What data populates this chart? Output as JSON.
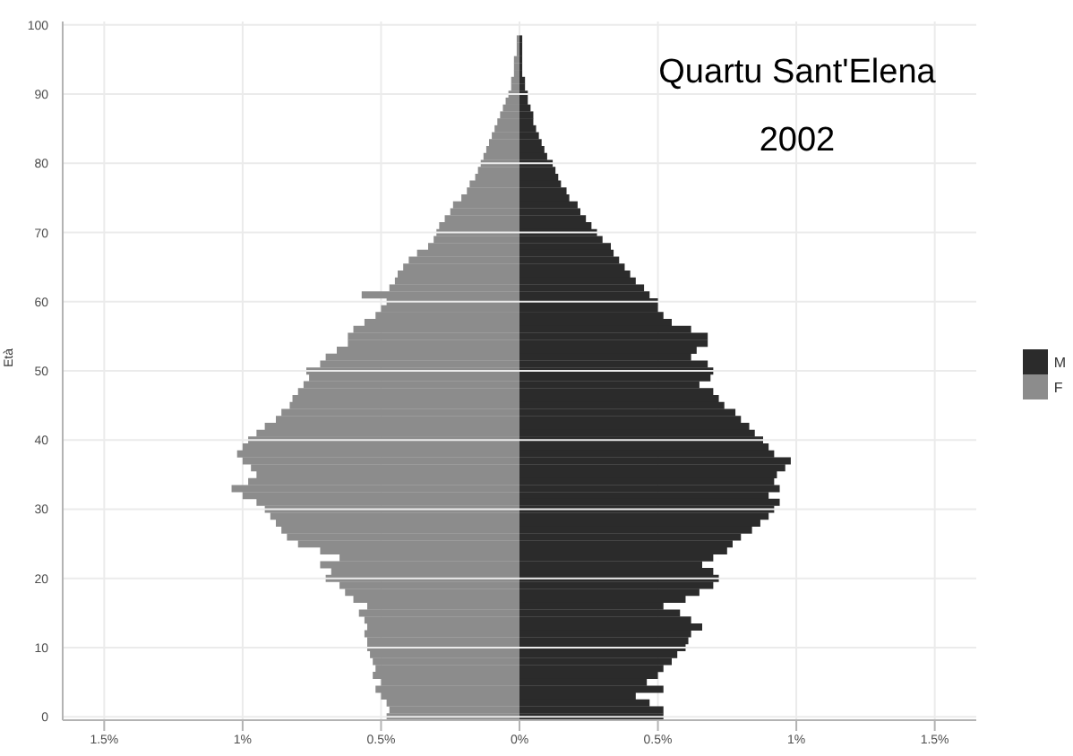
{
  "chart_data": {
    "type": "bar",
    "orientation": "horizontal",
    "stacked": true,
    "title": "Quartu Sant'Elena",
    "subtitle": "2002",
    "ylabel": "Età",
    "categories": [
      "100",
      null,
      null,
      null,
      null,
      null,
      null,
      null,
      null,
      null,
      "90",
      null,
      null,
      null,
      null,
      null,
      null,
      null,
      null,
      null,
      "80",
      null,
      null,
      null,
      null,
      null,
      null,
      null,
      null,
      null,
      "70",
      null,
      null,
      null,
      null,
      null,
      null,
      null,
      null,
      null,
      "60",
      null,
      null,
      null,
      null,
      null,
      null,
      null,
      null,
      null,
      "50",
      null,
      null,
      null,
      null,
      null,
      null,
      null,
      null,
      null,
      "40",
      null,
      null,
      null,
      null,
      null,
      null,
      null,
      null,
      null,
      "30",
      null,
      null,
      null,
      null,
      null,
      null,
      null,
      null,
      null,
      "20",
      null,
      null,
      null,
      null,
      null,
      null,
      null,
      null,
      null,
      "10",
      null,
      null,
      null,
      null,
      null,
      null,
      null,
      null,
      null,
      "0"
    ],
    "series": [
      {
        "name": "M",
        "color": "#2b2b2b",
        "values": [
          0,
          0,
          0.01,
          0.01,
          0.01,
          0.01,
          0.01,
          0.01,
          0.02,
          0.02,
          0.03,
          0.03,
          0.04,
          0.05,
          0.05,
          0.06,
          0.07,
          0.08,
          0.09,
          0.1,
          0.12,
          0.13,
          0.14,
          0.15,
          0.17,
          0.18,
          0.21,
          0.22,
          0.24,
          0.26,
          0.28,
          0.3,
          0.33,
          0.34,
          0.36,
          0.38,
          0.4,
          0.42,
          0.45,
          0.47,
          0.5,
          0.5,
          0.52,
          0.55,
          0.62,
          0.68,
          0.68,
          0.64,
          0.62,
          0.68,
          0.7,
          0.69,
          0.65,
          0.7,
          0.72,
          0.74,
          0.78,
          0.8,
          0.83,
          0.85,
          0.88,
          0.9,
          0.92,
          0.98,
          0.96,
          0.93,
          0.92,
          0.94,
          0.9,
          0.94,
          0.92,
          0.9,
          0.87,
          0.84,
          0.8,
          0.77,
          0.75,
          0.7,
          0.66,
          0.7,
          0.72,
          0.7,
          0.65,
          0.6,
          0.52,
          0.58,
          0.62,
          0.66,
          0.62,
          0.61,
          0.6,
          0.57,
          0.55,
          0.52,
          0.5,
          0.46,
          0.52,
          0.42,
          0.47,
          0.52,
          0.52
        ]
      },
      {
        "name": "F",
        "color": "#8c8c8c",
        "values": [
          0,
          0,
          -0.01,
          -0.01,
          -0.01,
          -0.02,
          -0.02,
          -0.02,
          -0.03,
          -0.03,
          -0.04,
          -0.05,
          -0.06,
          -0.07,
          -0.08,
          -0.09,
          -0.1,
          -0.11,
          -0.12,
          -0.13,
          -0.14,
          -0.15,
          -0.16,
          -0.18,
          -0.19,
          -0.21,
          -0.24,
          -0.25,
          -0.27,
          -0.29,
          -0.3,
          -0.31,
          -0.33,
          -0.37,
          -0.4,
          -0.42,
          -0.44,
          -0.45,
          -0.47,
          -0.57,
          -0.48,
          -0.5,
          -0.52,
          -0.56,
          -0.6,
          -0.62,
          -0.62,
          -0.66,
          -0.7,
          -0.72,
          -0.77,
          -0.76,
          -0.78,
          -0.8,
          -0.82,
          -0.83,
          -0.86,
          -0.88,
          -0.92,
          -0.95,
          -0.98,
          -1.0,
          -1.02,
          -1.0,
          -0.97,
          -0.95,
          -0.98,
          -1.04,
          -1.0,
          -0.95,
          -0.92,
          -0.9,
          -0.88,
          -0.86,
          -0.84,
          -0.8,
          -0.72,
          -0.65,
          -0.72,
          -0.68,
          -0.7,
          -0.65,
          -0.63,
          -0.6,
          -0.55,
          -0.58,
          -0.56,
          -0.55,
          -0.56,
          -0.55,
          -0.55,
          -0.54,
          -0.53,
          -0.52,
          -0.53,
          -0.5,
          -0.52,
          -0.5,
          -0.48,
          -0.47,
          -0.48
        ]
      }
    ],
    "xlim": [
      -1.65,
      1.65
    ],
    "xticks": [
      {
        "value": -1.5,
        "label": "1.5%"
      },
      {
        "value": -1,
        "label": "1%"
      },
      {
        "value": -0.5,
        "label": "0.5%"
      },
      {
        "value": 0,
        "label": "0%"
      },
      {
        "value": 0.5,
        "label": "0.5%"
      },
      {
        "value": 1,
        "label": "1%"
      },
      {
        "value": 1.5,
        "label": "1.5%"
      }
    ],
    "grid": true,
    "legend": "right"
  }
}
